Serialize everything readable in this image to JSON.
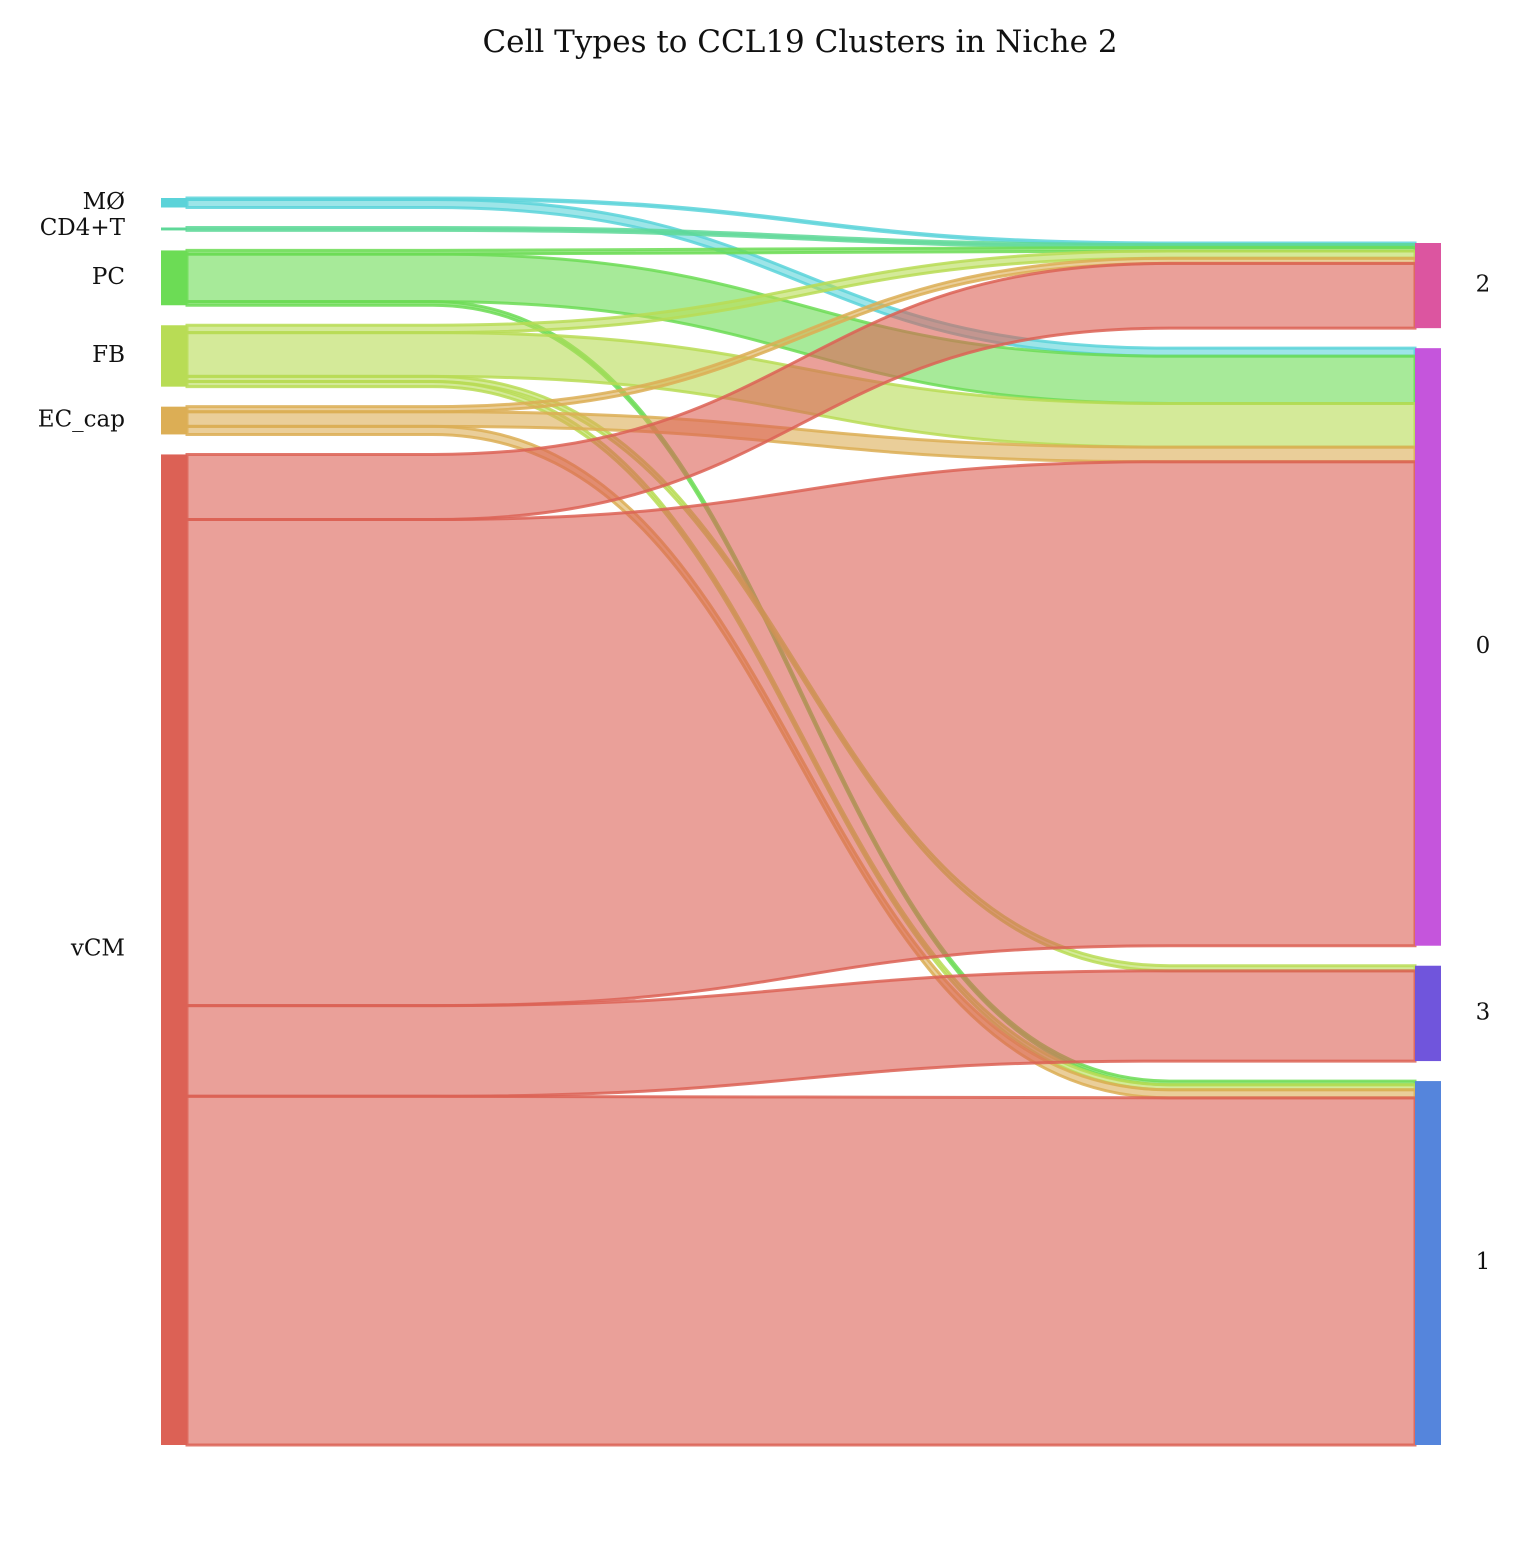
{
  "chart_data": {
    "type": "sankey",
    "title": "Cell Types to CCL19 Clusters in Niche 2",
    "sources": [
      {
        "id": "MO",
        "label": "MØ",
        "color": "#5bd3d9"
      },
      {
        "id": "CD4T",
        "label": "CD4+T",
        "color": "#5ed898"
      },
      {
        "id": "PC",
        "label": "PC",
        "color": "#6cdc55"
      },
      {
        "id": "FB",
        "label": "FB",
        "color": "#b8dc55"
      },
      {
        "id": "ECcap",
        "label": "EC_cap",
        "color": "#dcae55"
      },
      {
        "id": "vCM",
        "label": "vCM",
        "color": "#dc6155"
      }
    ],
    "targets": [
      {
        "id": "2",
        "label": "2",
        "color": "#dc55a0"
      },
      {
        "id": "0",
        "label": "0",
        "color": "#c555dc"
      },
      {
        "id": "3",
        "label": "3",
        "color": "#7055dc"
      },
      {
        "id": "1",
        "label": "1",
        "color": "#5585dc"
      }
    ],
    "flows": [
      {
        "source": "MO",
        "target": "2",
        "value": 0.2
      },
      {
        "source": "MO",
        "target": "0",
        "value": 1.1
      },
      {
        "source": "CD4T",
        "target": "2",
        "value": 0.4
      },
      {
        "source": "PC",
        "target": "2",
        "value": 0.5
      },
      {
        "source": "PC",
        "target": "0",
        "value": 6.5
      },
      {
        "source": "PC",
        "target": "1",
        "value": 0.5
      },
      {
        "source": "FB",
        "target": "2",
        "value": 1.0
      },
      {
        "source": "FB",
        "target": "0",
        "value": 6.0
      },
      {
        "source": "FB",
        "target": "3",
        "value": 0.7
      },
      {
        "source": "FB",
        "target": "1",
        "value": 0.7
      },
      {
        "source": "ECcap",
        "target": "2",
        "value": 0.7
      },
      {
        "source": "ECcap",
        "target": "0",
        "value": 2.0
      },
      {
        "source": "ECcap",
        "target": "1",
        "value": 1.1
      },
      {
        "source": "vCM",
        "target": "2",
        "value": 8.9
      },
      {
        "source": "vCM",
        "target": "0",
        "value": 66.5
      },
      {
        "source": "vCM",
        "target": "3",
        "value": 12.4
      },
      {
        "source": "vCM",
        "target": "1",
        "value": 47.7
      }
    ]
  }
}
